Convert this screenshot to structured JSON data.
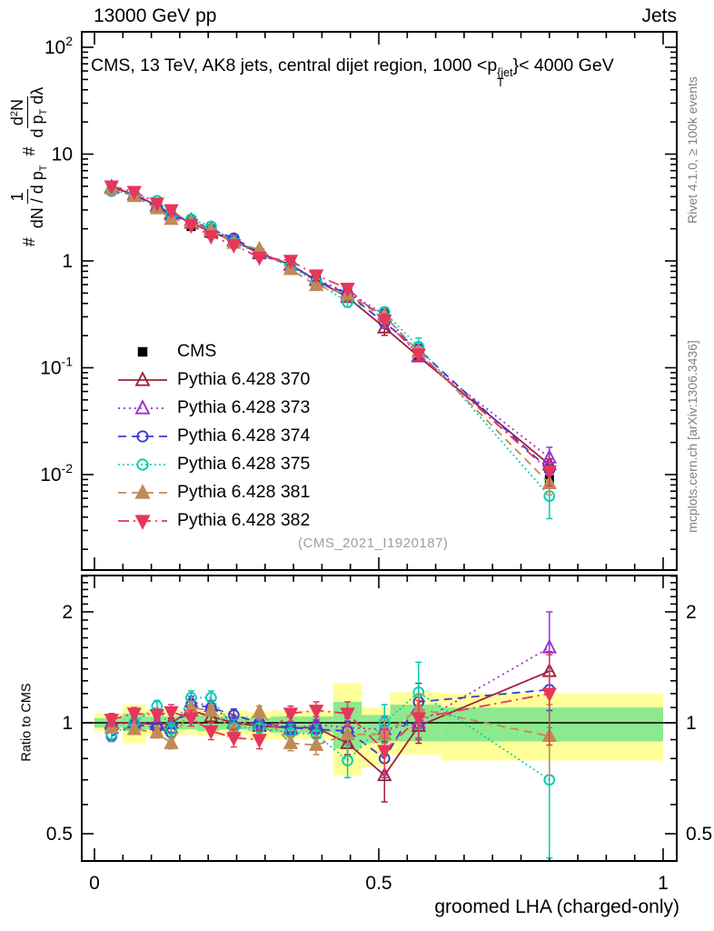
{
  "header": {
    "left": "13000 GeV pp",
    "right": "Jets"
  },
  "title": {
    "prefix": "CMS, 13 TeV, AK8 jets, central dijet region, 1000 <p",
    "sup": "{jet",
    "sub": "T",
    "suffix": "}< 4000 GeV"
  },
  "watermark": "(CMS_2021_I1920187)",
  "side_notes": {
    "top": "Rivet 4.1.0, ≥ 100k events",
    "bottom": "mcplots.cern.ch [arXiv:1306.3436]"
  },
  "ylabel_main": {
    "hash1": "#",
    "frac1_num": "1",
    "frac1_den": "dN / d p",
    "frac1_den_sub": "T",
    "hash2": "#",
    "frac2_num_a": "d",
    "frac2_num_sup": "2",
    "frac2_num_b": "N",
    "frac2_den_a": "d p",
    "frac2_den_sub": "T",
    "frac2_den_b": " dλ"
  },
  "xlabel": "groomed LHA (charged-only)",
  "chart_data": {
    "type": "line",
    "title": "CMS, 13 TeV, AK8 jets, central dijet region, 1000 < pT(jet) < 4000 GeV",
    "xlabel": "groomed LHA (charged-only)",
    "x": [
      0.03,
      0.07,
      0.11,
      0.135,
      0.17,
      0.205,
      0.245,
      0.29,
      0.345,
      0.39,
      0.445,
      0.51,
      0.57,
      0.8
    ],
    "x_axis": {
      "lim": [
        -0.0224,
        1.024
      ],
      "major_ticks": [
        {
          "v": 0,
          "label": "0"
        },
        {
          "v": 0.5,
          "label": "0.5"
        },
        {
          "v": 1,
          "label": "1"
        }
      ],
      "minor_step": 0.05
    },
    "main_panel": {
      "scale": "log",
      "ylim": [
        0.00128,
        139
      ],
      "y_ticks": [
        {
          "v": 100,
          "base": "10",
          "sup": "2"
        },
        {
          "v": 10,
          "base": "10",
          "sup": ""
        },
        {
          "v": 1,
          "base": "1",
          "sup": ""
        },
        {
          "v": 0.1,
          "base": "10",
          "sup": "-1"
        },
        {
          "v": 0.01,
          "base": "10",
          "sup": "-2"
        }
      ]
    },
    "ratio_panel": {
      "scale": "log",
      "ylim": [
        0.42,
        2.51
      ],
      "ylabel": "Ratio to CMS",
      "y_ticks": [
        {
          "v": 2,
          "label": "2"
        },
        {
          "v": 1,
          "label": "1"
        },
        {
          "v": 0.5,
          "label": "0.5"
        }
      ],
      "band_colors": {
        "yellow": "#FFFF99",
        "green": "#8DE98D"
      },
      "bands_yellow": [
        [
          0.0,
          0.05,
          0.95,
          1.06
        ],
        [
          0.05,
          0.09,
          0.88,
          1.12
        ],
        [
          0.09,
          0.12,
          0.92,
          1.09
        ],
        [
          0.12,
          0.15,
          0.92,
          1.08
        ],
        [
          0.15,
          0.18,
          0.93,
          1.08
        ],
        [
          0.18,
          0.22,
          0.92,
          1.08
        ],
        [
          0.22,
          0.27,
          0.93,
          1.08
        ],
        [
          0.27,
          0.31,
          0.9,
          1.07
        ],
        [
          0.31,
          0.36,
          0.9,
          1.08
        ],
        [
          0.36,
          0.42,
          0.9,
          1.08
        ],
        [
          0.42,
          0.47,
          0.72,
          1.28
        ],
        [
          0.47,
          0.52,
          0.76,
          1.1
        ],
        [
          0.52,
          0.61,
          0.82,
          1.21
        ],
        [
          0.61,
          1.0,
          0.79,
          1.2
        ]
      ],
      "bands_green": [
        [
          0.0,
          0.05,
          0.97,
          1.03
        ],
        [
          0.05,
          0.09,
          0.95,
          1.06
        ],
        [
          0.09,
          0.12,
          0.96,
          1.04
        ],
        [
          0.12,
          0.15,
          0.96,
          1.04
        ],
        [
          0.15,
          0.18,
          0.96,
          1.05
        ],
        [
          0.18,
          0.22,
          0.95,
          1.05
        ],
        [
          0.22,
          0.27,
          0.96,
          1.04
        ],
        [
          0.27,
          0.31,
          0.95,
          1.03
        ],
        [
          0.31,
          0.36,
          0.94,
          1.04
        ],
        [
          0.36,
          0.42,
          0.94,
          1.04
        ],
        [
          0.42,
          0.47,
          0.85,
          1.14
        ],
        [
          0.47,
          0.52,
          0.88,
          1.05
        ],
        [
          0.52,
          0.61,
          0.89,
          1.12
        ],
        [
          0.61,
          1.0,
          0.89,
          1.1
        ]
      ],
      "reference_line": 1
    },
    "cms": {
      "label": "CMS",
      "color": "#000000",
      "marker": "square",
      "values": [
        4.9,
        4.2,
        3.3,
        2.8,
        2.1,
        1.8,
        1.55,
        1.2,
        0.95,
        0.68,
        0.52,
        0.33,
        0.13,
        0.009
      ],
      "err_frac": [
        0.02,
        0.02,
        0.02,
        0.02,
        0.02,
        0.02,
        0.02,
        0.02,
        0.03,
        0.03,
        0.04,
        0.05,
        0.07,
        0.12
      ]
    },
    "series": [
      {
        "label": "Pythia 6.428 370",
        "color": "#A02038",
        "line": "solid",
        "marker": "triangle-up",
        "fill": "open",
        "ratio": [
          1.0,
          1.0,
          0.99,
          1.0,
          1.08,
          1.04,
          1.0,
          0.98,
          0.97,
          0.97,
          0.88,
          0.72,
          0.98,
          1.38
        ],
        "err": [
          0.03,
          0.03,
          0.03,
          0.03,
          0.04,
          0.04,
          0.04,
          0.04,
          0.04,
          0.05,
          0.06,
          0.11,
          0.1,
          0.18
        ]
      },
      {
        "label": "Pythia 6.428 373",
        "color": "#9A30D0",
        "line": "dotted",
        "marker": "triangle-up",
        "fill": "open",
        "ratio": [
          0.99,
          1.0,
          1.0,
          0.97,
          1.14,
          1.11,
          1.0,
          1.0,
          0.96,
          0.99,
          0.97,
          0.96,
          1.0,
          1.6
        ],
        "err": [
          0.03,
          0.03,
          0.03,
          0.03,
          0.04,
          0.04,
          0.04,
          0.04,
          0.04,
          0.05,
          0.06,
          0.08,
          0.1,
          0.4
        ]
      },
      {
        "label": "Pythia 6.428 374",
        "color": "#3B3BD6",
        "line": "dashed",
        "marker": "circle",
        "fill": "open",
        "ratio": [
          0.92,
          0.99,
          0.97,
          0.94,
          1.12,
          1.1,
          1.05,
          1.0,
          0.97,
          0.96,
          0.95,
          0.8,
          1.14,
          1.23
        ],
        "err": [
          0.03,
          0.03,
          0.03,
          0.03,
          0.04,
          0.04,
          0.04,
          0.04,
          0.04,
          0.05,
          0.06,
          0.09,
          0.14,
          0.15
        ]
      },
      {
        "label": "Pythia 6.428 375",
        "color": "#00CCAE",
        "line": "dotted-fine",
        "marker": "circle",
        "fill": "open",
        "ratio": [
          0.93,
          1.0,
          1.11,
          0.96,
          1.17,
          1.17,
          0.97,
          0.97,
          0.94,
          0.93,
          0.79,
          1.0,
          1.21,
          0.7
        ],
        "err": [
          0.04,
          0.04,
          0.04,
          0.04,
          0.05,
          0.05,
          0.05,
          0.05,
          0.05,
          0.06,
          0.08,
          0.12,
          0.25,
          0.27
        ]
      },
      {
        "label": "Pythia 6.428 381",
        "color": "#BF8A56",
        "line": "dashed",
        "marker": "triangle-up",
        "fill": "filled",
        "ratio": [
          0.97,
          0.96,
          0.94,
          0.88,
          1.1,
          1.08,
          0.95,
          1.07,
          0.88,
          0.87,
          0.93,
          0.93,
          1.09,
          0.92
        ],
        "err": [
          0.03,
          0.03,
          0.03,
          0.03,
          0.04,
          0.04,
          0.04,
          0.04,
          0.04,
          0.05,
          0.06,
          0.08,
          0.1,
          0.2
        ]
      },
      {
        "label": "Pythia 6.428 382",
        "color": "#E6365A",
        "line": "dashdot",
        "marker": "triangle-down",
        "fill": "filled",
        "ratio": [
          1.02,
          1.06,
          1.05,
          1.07,
          1.03,
          0.95,
          0.91,
          0.9,
          1.06,
          1.08,
          1.06,
          0.84,
          1.03,
          1.2
        ],
        "err": [
          0.04,
          0.04,
          0.04,
          0.05,
          0.05,
          0.05,
          0.05,
          0.05,
          0.05,
          0.06,
          0.08,
          0.12,
          0.12,
          0.33
        ]
      }
    ],
    "legend_position": "left-middle",
    "grid": false
  }
}
